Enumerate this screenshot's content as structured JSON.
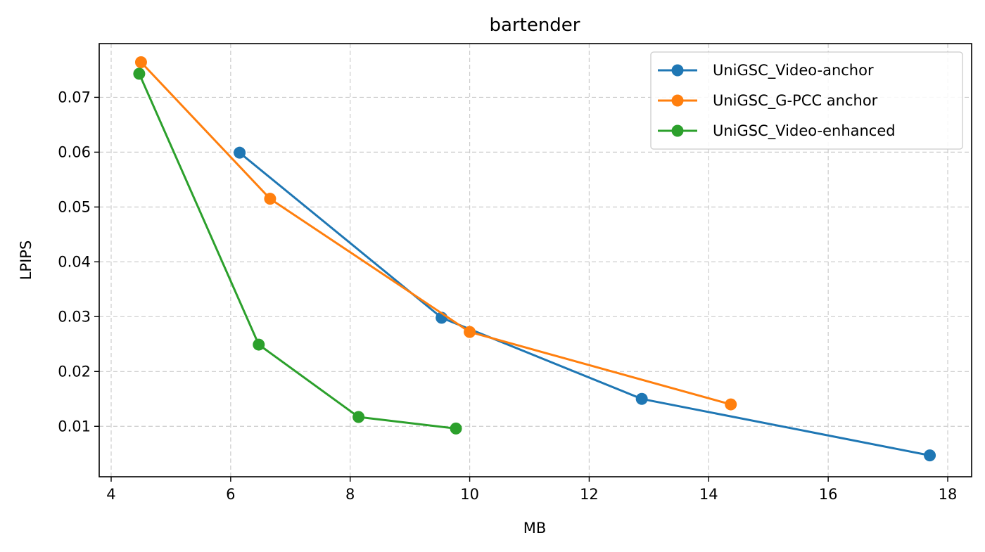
{
  "chart_data": {
    "type": "line",
    "title": "bartender",
    "xlabel": "MB",
    "ylabel": "LPIPS",
    "xlim": [
      3.8,
      18.4
    ],
    "ylim": [
      0.0008,
      0.0798
    ],
    "xticks": [
      4,
      6,
      8,
      10,
      12,
      14,
      16,
      18
    ],
    "yticks": [
      0.01,
      0.02,
      0.03,
      0.04,
      0.05,
      0.06,
      0.07
    ],
    "xtick_labels": [
      "4",
      "6",
      "8",
      "10",
      "12",
      "14",
      "16",
      "18"
    ],
    "ytick_labels": [
      "0.01",
      "0.02",
      "0.03",
      "0.04",
      "0.05",
      "0.06",
      "0.07"
    ],
    "grid": true,
    "legend_position": "top-right",
    "series": [
      {
        "name": "UniGSC_Video-anchor",
        "color": "#1f77b4",
        "x": [
          6.15,
          9.53,
          12.88,
          17.7
        ],
        "y": [
          0.0599,
          0.0298,
          0.015,
          0.0047
        ]
      },
      {
        "name": "UniGSC_G-PCC anchor",
        "color": "#ff7f0e",
        "x": [
          4.5,
          6.66,
          10.0,
          14.37
        ],
        "y": [
          0.0764,
          0.0515,
          0.0272,
          0.014
        ]
      },
      {
        "name": "UniGSC_Video-enhanced",
        "color": "#2ca02c",
        "x": [
          4.47,
          6.47,
          8.14,
          9.77
        ],
        "y": [
          0.0743,
          0.0249,
          0.0117,
          0.0096
        ]
      }
    ]
  }
}
